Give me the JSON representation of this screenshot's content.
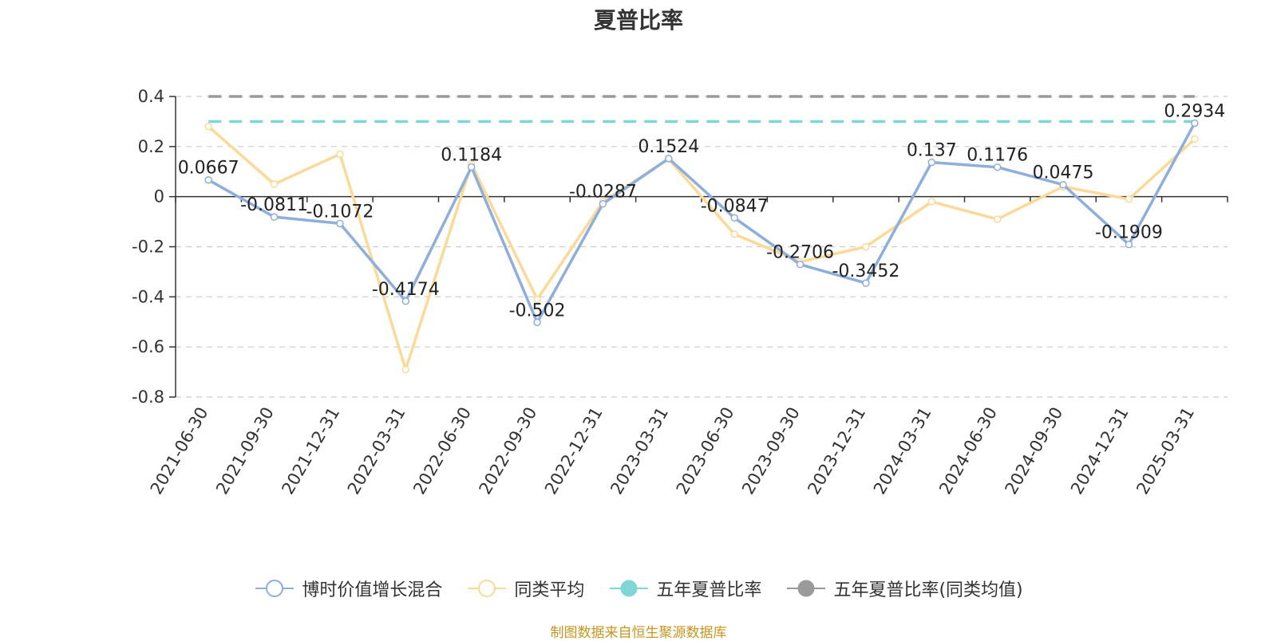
{
  "title": "夏普比率",
  "source": "制图数据来自恒生聚源数据库",
  "chart_data": {
    "type": "line",
    "title": "夏普比率",
    "categories": [
      "2021-06-30",
      "2021-09-30",
      "2021-12-31",
      "2022-03-31",
      "2022-06-30",
      "2022-09-30",
      "2022-12-31",
      "2023-03-31",
      "2023-06-30",
      "2023-09-30",
      "2023-12-31",
      "2024-03-31",
      "2024-06-30",
      "2024-09-30",
      "2024-12-31",
      "2025-03-31"
    ],
    "ylim": [
      -0.8,
      0.4
    ],
    "yticks": [
      0.4,
      0.2,
      0,
      -0.2,
      -0.4,
      -0.6,
      -0.8
    ],
    "ytick_labels": [
      "0.4",
      "0.2",
      "0",
      "-0.2",
      "-0.4",
      "-0.6",
      "-0.8"
    ],
    "grid": true,
    "legend_position": "bottom",
    "series": [
      {
        "name": "博时价值增长混合",
        "color": "#8eaedb",
        "style": "solid-marker",
        "values": [
          0.0667,
          -0.0811,
          -0.1072,
          -0.4174,
          0.1184,
          -0.502,
          -0.0287,
          0.1524,
          -0.0847,
          -0.2706,
          -0.3452,
          0.137,
          0.1176,
          0.0475,
          -0.1909,
          0.2934
        ],
        "labels": [
          "0.0667",
          "-0.0811",
          "-0.1072",
          "-0.4174",
          "0.1184",
          "-0.502",
          "-0.0287",
          "0.1524",
          "-0.0847",
          "-0.2706",
          "-0.3452",
          "0.137",
          "0.1176",
          "0.0475",
          "-0.1909",
          "0.2934"
        ]
      },
      {
        "name": "同类平均",
        "color": "#fbd999",
        "style": "solid-marker",
        "values": [
          0.28,
          0.05,
          0.17,
          -0.69,
          0.13,
          -0.41,
          -0.02,
          0.15,
          -0.15,
          -0.26,
          -0.2,
          -0.02,
          -0.09,
          0.04,
          -0.01,
          0.23
        ]
      },
      {
        "name": "五年夏普比率",
        "color": "#7fd6d6",
        "style": "dashed",
        "values": [
          0.3,
          0.3,
          0.3,
          0.3,
          0.3,
          0.3,
          0.3,
          0.3,
          0.3,
          0.3,
          0.3,
          0.3,
          0.3,
          0.3,
          0.3,
          0.3
        ]
      },
      {
        "name": "五年夏普比率(同类均值)",
        "color": "#9a9a9a",
        "style": "dashed",
        "values": [
          0.4,
          0.4,
          0.4,
          0.4,
          0.4,
          0.4,
          0.4,
          0.4,
          0.4,
          0.4,
          0.4,
          0.4,
          0.4,
          0.4,
          0.4,
          0.4
        ]
      }
    ]
  }
}
